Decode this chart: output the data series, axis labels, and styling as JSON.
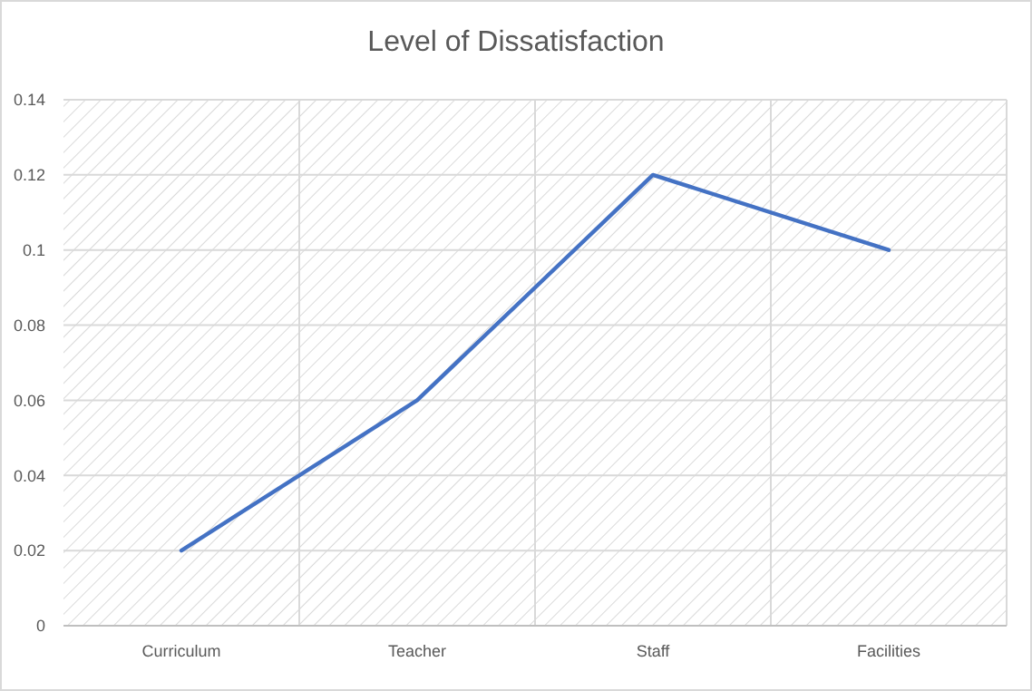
{
  "chart_data": {
    "type": "line",
    "title": "Level of Dissatisfaction",
    "categories": [
      "Curriculum",
      "Teacher",
      "Staff",
      "Facilities"
    ],
    "series": [
      {
        "color": "#4472c4",
        "values": [
          0.02,
          0.06,
          0.12,
          0.1
        ]
      }
    ],
    "ylim": [
      0,
      0.14
    ],
    "yticks": [
      0,
      0.02,
      0.04,
      0.06,
      0.08,
      0.1,
      0.12,
      0.14
    ],
    "grid": true,
    "marker": "none",
    "line_style": "solid"
  }
}
